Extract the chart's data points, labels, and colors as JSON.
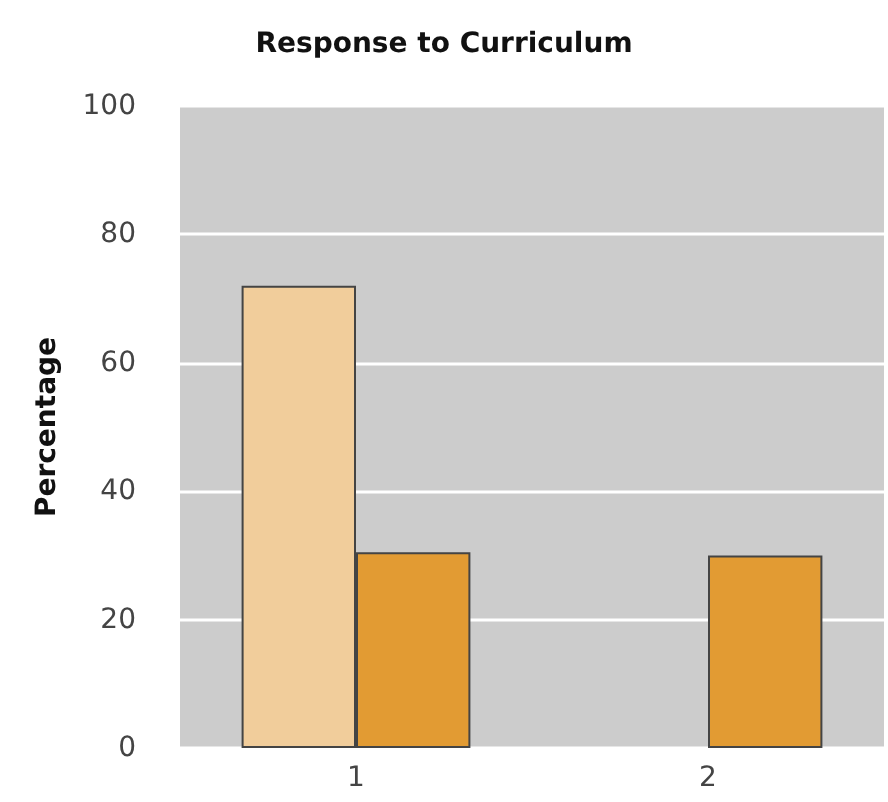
{
  "chart_data": {
    "type": "bar",
    "title": "Response to Curriculum",
    "ylabel": "Percentage",
    "categories": [
      "1",
      "2"
    ],
    "series": [
      {
        "color": "#f1cd9b",
        "values": [
          72,
          null
        ]
      },
      {
        "color": "#e29b33",
        "values": [
          30.5,
          30
        ]
      }
    ],
    "ylim": [
      0,
      100
    ],
    "yticks": [
      0,
      20,
      40,
      60,
      80,
      100
    ],
    "grid": "y"
  }
}
